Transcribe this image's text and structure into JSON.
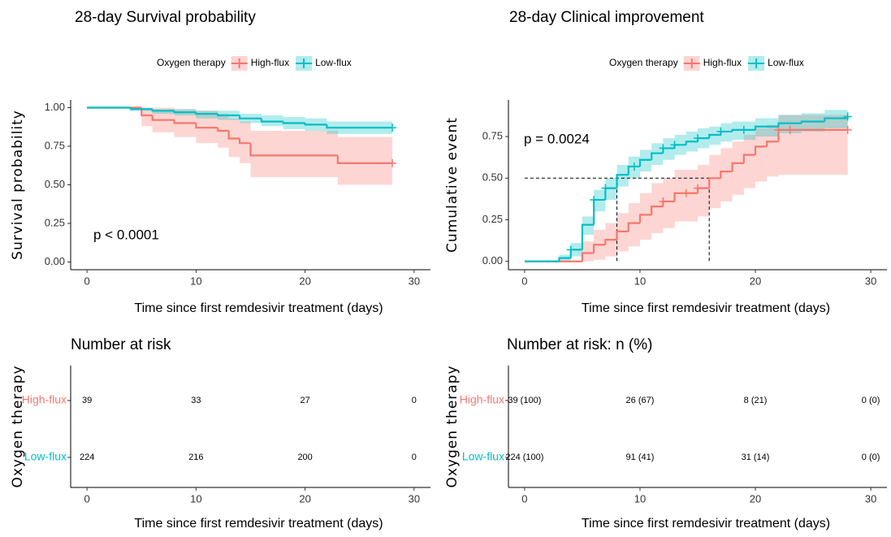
{
  "chart_data": [
    {
      "type": "step",
      "title": "28-day Survival probability",
      "legend_title": "Oxygen therapy",
      "xlabel": "Time since first remdesivir treatment (days)",
      "ylabel": "Survival probability",
      "annotation": "p < 0.0001",
      "xlim": [
        -1.5,
        31.5
      ],
      "xticks": [
        0,
        10,
        20,
        30
      ],
      "ylim": [
        -0.05,
        1.05
      ],
      "yticks": [
        {
          "value": 0,
          "label": "0.00"
        },
        {
          "value": 0.25,
          "label": "0.25"
        },
        {
          "value": 0.5,
          "label": "0.50"
        },
        {
          "value": 0.75,
          "label": "0.75"
        },
        {
          "value": 1,
          "label": "1.00"
        }
      ],
      "series": [
        {
          "name": "High-flux",
          "color": "#F8766D",
          "x": [
            0,
            5,
            6,
            8,
            10,
            12,
            13,
            14,
            15,
            23,
            28
          ],
          "values": [
            1,
            0.95,
            0.92,
            0.9,
            0.87,
            0.85,
            0.8,
            0.77,
            0.69,
            0.64,
            0.64
          ],
          "lower": [
            1,
            0.88,
            0.84,
            0.81,
            0.77,
            0.74,
            0.68,
            0.64,
            0.55,
            0.5,
            0.5
          ],
          "upper": [
            1,
            1,
            1,
            0.99,
            0.98,
            0.96,
            0.93,
            0.91,
            0.85,
            0.81,
            0.81
          ],
          "censor": [
            28
          ]
        },
        {
          "name": "Low-flux",
          "color": "#00BFC4",
          "x": [
            0,
            4,
            6,
            8,
            10,
            12,
            14,
            16,
            18,
            20,
            22,
            28
          ],
          "values": [
            1,
            0.99,
            0.98,
            0.97,
            0.96,
            0.95,
            0.93,
            0.91,
            0.9,
            0.89,
            0.87,
            0.87
          ],
          "lower": [
            1,
            0.98,
            0.96,
            0.95,
            0.93,
            0.92,
            0.9,
            0.88,
            0.86,
            0.85,
            0.83,
            0.83
          ],
          "upper": [
            1,
            1,
            0.99,
            0.99,
            0.98,
            0.98,
            0.96,
            0.95,
            0.94,
            0.93,
            0.91,
            0.91
          ],
          "censor": [
            28
          ]
        }
      ]
    },
    {
      "type": "step",
      "title": "28-day Clinical improvement",
      "legend_title": "Oxygen therapy",
      "xlabel": "Time since first remdesivir treatment (days)",
      "ylabel": "Cumulative event",
      "annotation": "p = 0.0024",
      "xlim": [
        -1.4,
        31.4
      ],
      "xticks": [
        0,
        10,
        20,
        30
      ],
      "ylim": [
        -0.05,
        0.97
      ],
      "yticks": [
        {
          "value": 0,
          "label": "0.00"
        },
        {
          "value": 0.25,
          "label": "0.25"
        },
        {
          "value": 0.5,
          "label": "0.50"
        },
        {
          "value": 0.75,
          "label": "0.75"
        }
      ],
      "median": {
        "level": 0.5,
        "times": [
          8,
          16
        ]
      },
      "series": [
        {
          "name": "High-flux",
          "color": "#F8766D",
          "x": [
            0,
            5,
            6,
            7,
            8,
            9,
            10,
            11,
            12,
            13,
            15,
            16,
            17,
            18,
            19,
            20,
            21,
            22,
            28
          ],
          "values": [
            0,
            0.05,
            0.1,
            0.13,
            0.18,
            0.23,
            0.28,
            0.33,
            0.36,
            0.41,
            0.44,
            0.5,
            0.54,
            0.59,
            0.64,
            0.69,
            0.72,
            0.79,
            0.79
          ],
          "lower": [
            0,
            0,
            0.01,
            0.03,
            0.06,
            0.09,
            0.13,
            0.17,
            0.2,
            0.24,
            0.27,
            0.32,
            0.36,
            0.4,
            0.44,
            0.48,
            0.51,
            0.52,
            0.52
          ],
          "upper": [
            0,
            0.12,
            0.19,
            0.23,
            0.29,
            0.35,
            0.41,
            0.47,
            0.5,
            0.55,
            0.58,
            0.64,
            0.68,
            0.72,
            0.76,
            0.8,
            0.82,
            0.88,
            0.88
          ],
          "censor": [
            12,
            14,
            15,
            22,
            23,
            28
          ]
        },
        {
          "name": "Low-flux",
          "color": "#00BFC4",
          "x": [
            0,
            3,
            4,
            5,
            6,
            7,
            8,
            9,
            10,
            11,
            12,
            13,
            14,
            15,
            16,
            17,
            18,
            20,
            22,
            24,
            26,
            28
          ],
          "values": [
            0,
            0.02,
            0.07,
            0.22,
            0.37,
            0.44,
            0.52,
            0.57,
            0.61,
            0.65,
            0.68,
            0.7,
            0.72,
            0.74,
            0.76,
            0.78,
            0.79,
            0.81,
            0.83,
            0.84,
            0.86,
            0.87
          ],
          "lower": [
            0,
            0,
            0.03,
            0.16,
            0.3,
            0.37,
            0.45,
            0.5,
            0.54,
            0.58,
            0.61,
            0.64,
            0.66,
            0.68,
            0.7,
            0.72,
            0.73,
            0.75,
            0.77,
            0.78,
            0.8,
            0.81
          ],
          "upper": [
            0,
            0.04,
            0.11,
            0.27,
            0.43,
            0.5,
            0.58,
            0.63,
            0.67,
            0.71,
            0.74,
            0.76,
            0.78,
            0.8,
            0.81,
            0.83,
            0.84,
            0.86,
            0.88,
            0.89,
            0.91,
            0.92
          ],
          "censor": [
            4,
            6,
            7,
            9.5,
            12,
            13,
            15,
            17,
            19,
            28
          ]
        }
      ]
    },
    {
      "type": "risk_table",
      "title": "Number at risk",
      "ylabel": "Oxygen therapy",
      "xlabel": "Time since first remdesivir treatment (days)",
      "xlim": [
        -1.5,
        31.5
      ],
      "xticks": [
        0,
        10,
        20,
        30
      ],
      "x": [
        0,
        10,
        20,
        30
      ],
      "series": [
        {
          "name": "High-flux",
          "color": "#F8766D",
          "values": [
            39,
            33,
            27,
            0
          ]
        },
        {
          "name": "Low-flux",
          "color": "#00BFC4",
          "values": [
            224,
            216,
            200,
            0
          ]
        }
      ]
    },
    {
      "type": "risk_table",
      "title": "Number at risk: n (%)",
      "ylabel": "Oxygen therapy",
      "xlabel": "Time since first remdesivir treatment (days)",
      "xlim": [
        -1.4,
        31.4
      ],
      "xticks": [
        0,
        10,
        20,
        30
      ],
      "x": [
        0,
        10,
        20,
        30
      ],
      "series": [
        {
          "name": "High-flux",
          "color": "#F8766D",
          "values": [
            39,
            26,
            8,
            0
          ],
          "value_labels": [
            "39 (100)",
            "26 (67)",
            "8 (21)",
            "0 (0)"
          ]
        },
        {
          "name": "Low-flux",
          "color": "#00BFC4",
          "values": [
            224,
            91,
            31,
            0
          ],
          "value_labels": [
            "224 (100)",
            "91 (41)",
            "31 (14)",
            "0 (0)"
          ]
        }
      ]
    }
  ]
}
